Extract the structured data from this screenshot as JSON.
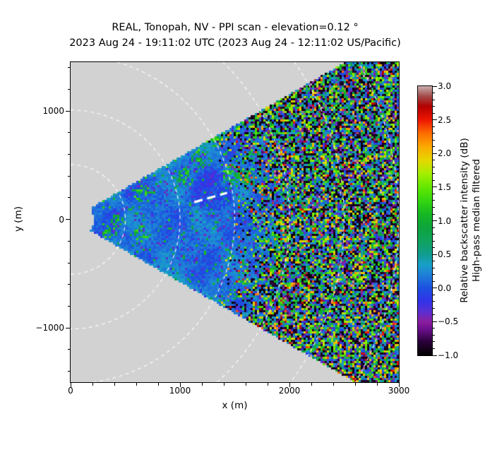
{
  "chart_data": {
    "type": "heatmap",
    "title": "REAL, Tonopah, NV - PPI scan - elevation=0.12 °",
    "subtitle": "2023 Aug 24 - 19:11:02 UTC (2023 Aug 24 - 12:11:02 US/Pacific)",
    "xlabel": "x (m)",
    "ylabel": "y (m)",
    "xlim": [
      0,
      3000
    ],
    "ylim": [
      -1500,
      1450
    ],
    "x_major_ticks": [
      0,
      1000,
      2000,
      3000
    ],
    "x_major_tick_labels": [
      "0",
      "1000",
      "2000",
      "3000"
    ],
    "y_major_ticks": [
      1000,
      0,
      -1000
    ],
    "y_major_tick_labels": [
      "1000",
      "0",
      "−1000"
    ],
    "minor_tick_step_m": 200,
    "grid": "white dashed polar range rings centered on scan origin",
    "legend_position": "right colorbar",
    "scan": {
      "description": "PPI lidar wedge of relative backscatter opening toward +x; gray = no data",
      "origin_m": [
        0,
        0
      ],
      "inner_radius_m": 210,
      "half_angle_deg": 30,
      "near_field_range_m": 1450,
      "far_field_range_m": 1950,
      "noise_seed": 1337,
      "wisps_m": [
        [
          1030,
          390,
          100
        ],
        [
          1480,
          420,
          85
        ],
        [
          1310,
          750,
          75
        ],
        [
          1590,
          390,
          75
        ],
        [
          665,
          240,
          85
        ],
        [
          430,
          -20,
          65
        ],
        [
          645,
          -130,
          80
        ],
        [
          1200,
          560,
          90
        ],
        [
          350,
          -120,
          60
        ]
      ],
      "dark_patch_m": [
        1300,
        270,
        190
      ]
    },
    "range_rings_m": [
      500,
      1000,
      1500,
      2000,
      2500,
      3000
    ],
    "annotation_line_m": {
      "x1": 1130,
      "y1": 160,
      "x2": 1430,
      "y2": 245
    },
    "colorbar": {
      "label_line1": "Relative backscatter intensity (dB)",
      "label_line2": "High-pass median filtered",
      "vmin": -1.0,
      "vmax": 3.0,
      "major_ticks": [
        3.0,
        2.5,
        2.0,
        1.5,
        1.0,
        0.5,
        0.0,
        -0.5,
        -1.0
      ],
      "major_tick_labels": [
        "3.0",
        "2.5",
        "2.0",
        "1.5",
        "1.0",
        "0.5",
        "0.0",
        "−0.5",
        "−1.0"
      ],
      "minor_tick_step": 0.1,
      "colormap_stops": [
        [
          -1.0,
          "#000000"
        ],
        [
          -0.8,
          "#2a0038"
        ],
        [
          -0.6,
          "#6e1090"
        ],
        [
          -0.5,
          "#8b1f9e"
        ],
        [
          -0.35,
          "#5b2fd2"
        ],
        [
          -0.2,
          "#3233e8"
        ],
        [
          0.0,
          "#1b50e0"
        ],
        [
          0.2,
          "#1f80d8"
        ],
        [
          0.35,
          "#18a0c8"
        ],
        [
          0.5,
          "#109c8e"
        ],
        [
          0.7,
          "#10a35e"
        ],
        [
          0.9,
          "#0da53c"
        ],
        [
          1.1,
          "#15b822"
        ],
        [
          1.3,
          "#35d60f"
        ],
        [
          1.5,
          "#62e800"
        ],
        [
          1.7,
          "#a5ee00"
        ],
        [
          1.9,
          "#e6d700"
        ],
        [
          2.1,
          "#fbaa00"
        ],
        [
          2.3,
          "#fd6c00"
        ],
        [
          2.5,
          "#ee1500"
        ],
        [
          2.7,
          "#b30000"
        ],
        [
          2.85,
          "#a34a4a"
        ],
        [
          3.0,
          "#c9aeae"
        ]
      ]
    },
    "colors": {
      "masked_background": "#d2d2d2",
      "figure_background": "#ffffff",
      "range_ring": "#ffffff",
      "annotation": "#ffffff",
      "axes": "#000000"
    }
  }
}
